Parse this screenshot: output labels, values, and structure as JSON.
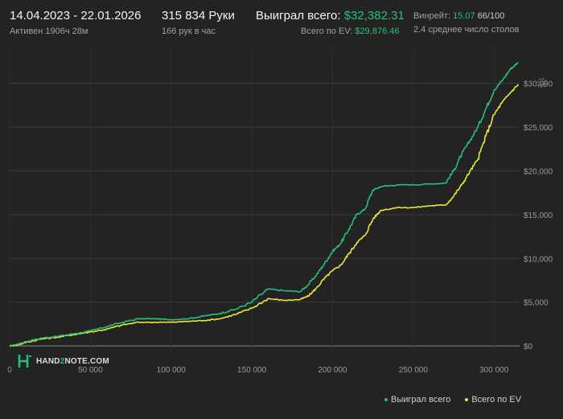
{
  "header": {
    "date_range": "14.04.2023 - 22.01.2026",
    "active": "Активен 1906ч 28м",
    "hands": "315 834 Руки",
    "hands_per_hour": "166 рук в час",
    "won_total_label": "Выиграл всего:",
    "won_total_value": "$32,382.31",
    "ev_total_label": "Всего по EV:",
    "ev_total_value": "$29,876.46",
    "winrate_label": "Винрейт:",
    "winrate_value": "15.07",
    "winrate_extra": "66/100",
    "avg_tables": "2.4 среднее число столов"
  },
  "brand": {
    "logo_left": "HAND",
    "logo_mid": "2",
    "logo_right": "NOTE.COM"
  },
  "colors": {
    "won": "#27c07a",
    "ev": "#e9e83a",
    "background": "#232323",
    "grid": "#3a3a3a"
  },
  "icons": {
    "settings": "gear-icon"
  },
  "chart_data": {
    "type": "line",
    "xlim": [
      0,
      315834
    ],
    "ylim": [
      -1000,
      34000
    ],
    "x_ticks": [
      {
        "value": 0,
        "label": "0"
      },
      {
        "value": 50000,
        "label": "50 000"
      },
      {
        "value": 100000,
        "label": "100 000"
      },
      {
        "value": 150000,
        "label": "150 000"
      },
      {
        "value": 200000,
        "label": "200 000"
      },
      {
        "value": 250000,
        "label": "250 000"
      },
      {
        "value": 300000,
        "label": "300 000"
      }
    ],
    "y_ticks": [
      {
        "value": 0,
        "label": "$0"
      },
      {
        "value": 5000,
        "label": "$5,000"
      },
      {
        "value": 10000,
        "label": "$10,000"
      },
      {
        "value": 15000,
        "label": "$15,000"
      },
      {
        "value": 20000,
        "label": "$20,000"
      },
      {
        "value": 25000,
        "label": "$25,000"
      },
      {
        "value": 30000,
        "label": "$30,000"
      }
    ],
    "grid": true,
    "legend_position": "bottom-right",
    "series": [
      {
        "name": "Выиграл всего",
        "color": "#27c07a",
        "x": [
          0,
          5000,
          10000,
          20000,
          30000,
          40000,
          50000,
          60000,
          70000,
          80000,
          90000,
          100000,
          110000,
          120000,
          130000,
          140000,
          150000,
          160000,
          170000,
          180000,
          185000,
          190000,
          195000,
          200000,
          205000,
          210000,
          215000,
          220000,
          225000,
          230000,
          240000,
          250000,
          260000,
          270000,
          275000,
          280000,
          285000,
          290000,
          295000,
          300000,
          305000,
          310000,
          315000
        ],
        "y": [
          0,
          200,
          500,
          900,
          1100,
          1400,
          1700,
          2200,
          2700,
          3100,
          3100,
          3000,
          3100,
          3400,
          3700,
          4200,
          5000,
          6500,
          6300,
          6200,
          7000,
          8100,
          9400,
          10800,
          11700,
          13300,
          15000,
          15600,
          17800,
          18200,
          18400,
          18400,
          18500,
          18600,
          20000,
          21900,
          23400,
          25000,
          27100,
          29200,
          30300,
          31600,
          32382
        ]
      },
      {
        "name": "Всего по EV",
        "color": "#e9e83a",
        "x": [
          0,
          5000,
          10000,
          20000,
          30000,
          40000,
          50000,
          60000,
          70000,
          80000,
          90000,
          100000,
          110000,
          120000,
          130000,
          140000,
          150000,
          160000,
          170000,
          180000,
          185000,
          190000,
          195000,
          200000,
          205000,
          210000,
          215000,
          220000,
          225000,
          230000,
          240000,
          250000,
          260000,
          270000,
          275000,
          280000,
          285000,
          290000,
          295000,
          300000,
          305000,
          310000,
          315000
        ],
        "y": [
          0,
          100,
          400,
          800,
          1000,
          1300,
          1600,
          1900,
          2400,
          2700,
          2700,
          2700,
          2800,
          2900,
          3100,
          3600,
          4300,
          5400,
          5200,
          5300,
          5700,
          6600,
          7700,
          8600,
          9200,
          10500,
          11800,
          12600,
          14500,
          15500,
          15800,
          15800,
          16000,
          16100,
          17100,
          18400,
          19900,
          21300,
          24000,
          26400,
          27800,
          28900,
          29876
        ]
      }
    ]
  }
}
